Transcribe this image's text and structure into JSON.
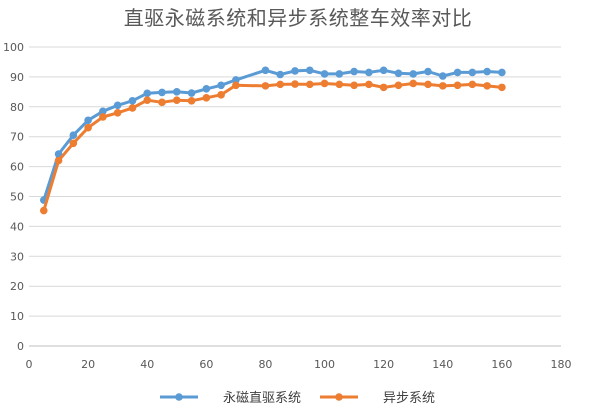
{
  "chart_data": {
    "type": "line",
    "title": "直驱永磁系统和异步系统整车效率对比",
    "xlim": [
      0,
      180
    ],
    "ylim": [
      0,
      100
    ],
    "x_ticks": [
      "0",
      "20",
      "40",
      "60",
      "80",
      "100",
      "120",
      "140",
      "160",
      "180"
    ],
    "y_ticks": [
      "0",
      "10",
      "20",
      "30",
      "40",
      "50",
      "60",
      "70",
      "80",
      "90",
      "100"
    ],
    "grid": true,
    "legend_position": "bottom",
    "series": [
      {
        "name": "永磁直驱系统",
        "color": "#5b9bd5",
        "x": [
          5,
          10,
          15,
          20,
          25,
          30,
          35,
          40,
          45,
          50,
          55,
          60,
          65,
          70,
          80,
          85,
          90,
          95,
          100,
          105,
          110,
          115,
          120,
          125,
          130,
          135,
          140,
          145,
          150,
          155,
          160
        ],
        "y": [
          48.8,
          64.2,
          70.5,
          75.5,
          78.5,
          80.5,
          82,
          84.5,
          84.8,
          85,
          84.6,
          86,
          87.2,
          89,
          92.2,
          90.8,
          92,
          92.2,
          91,
          91,
          91.8,
          91.5,
          92.2,
          91.2,
          91,
          91.8,
          90.3,
          91.5,
          91.5,
          91.8,
          91.5
        ]
      },
      {
        "name": "异步系统",
        "color": "#ed7d31",
        "x": [
          5,
          10,
          15,
          20,
          25,
          30,
          35,
          40,
          45,
          50,
          55,
          60,
          65,
          70,
          80,
          85,
          90,
          95,
          100,
          105,
          110,
          115,
          120,
          125,
          130,
          135,
          140,
          145,
          150,
          155,
          160
        ],
        "y": [
          45.3,
          62,
          67.8,
          73,
          76.6,
          78,
          79.6,
          82.2,
          81.5,
          82.2,
          82,
          83,
          84,
          87.2,
          87,
          87.5,
          87.6,
          87.5,
          87.8,
          87.5,
          87.2,
          87.5,
          86.5,
          87.2,
          87.8,
          87.5,
          87,
          87.2,
          87.5,
          87,
          86.5
        ]
      }
    ]
  }
}
